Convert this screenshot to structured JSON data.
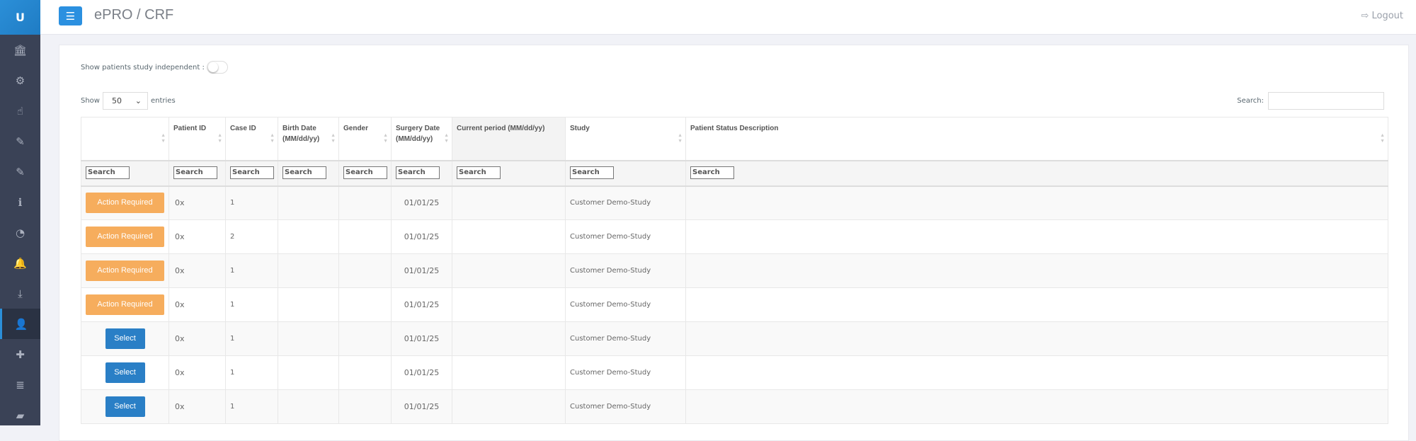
{
  "sidebar": {
    "logo": "U",
    "items": [
      {
        "icon": "bank-icon",
        "glyph": "🏛"
      },
      {
        "icon": "gear-icon",
        "glyph": "⚙"
      },
      {
        "icon": "hand-pointer-icon",
        "glyph": "☝"
      },
      {
        "icon": "pencil-icon",
        "glyph": "✎"
      },
      {
        "icon": "pencil-icon",
        "glyph": "✎"
      },
      {
        "icon": "info-icon",
        "glyph": "ℹ"
      },
      {
        "icon": "dashboard-icon",
        "glyph": "◔"
      },
      {
        "icon": "bell-icon",
        "glyph": "🔔"
      },
      {
        "icon": "download-icon",
        "glyph": "⤓"
      },
      {
        "icon": "user-md-icon",
        "glyph": "👤",
        "active": true
      },
      {
        "icon": "medkit-icon",
        "glyph": "✚"
      },
      {
        "icon": "database-icon",
        "glyph": "≣"
      },
      {
        "icon": "book-icon",
        "glyph": "▰"
      }
    ]
  },
  "header": {
    "title": "ePRO / CRF",
    "logout": "Logout",
    "accent": "#2b90e0"
  },
  "controls": {
    "toggle_label": "Show patients study independent :",
    "toggle_on": false,
    "show": "Show",
    "entries_value": "50",
    "entries": "entries",
    "search_label": "Search:",
    "search_value": ""
  },
  "table": {
    "columns": [
      "",
      "Patient ID",
      "Case ID",
      "Birth Date (MM/dd/yy)",
      "Gender",
      "Surgery Date (MM/dd/yy)",
      "Current period (MM/dd/yy)",
      "Study",
      "Patient Status Description"
    ],
    "filter_placeholder": "Search",
    "rows": [
      {
        "action": "Action Required",
        "patient_id": "0x",
        "case_id": "1",
        "birth": "",
        "gender": "",
        "surgery": "01/01/25",
        "period": "",
        "study": "Customer Demo-Study",
        "status": ""
      },
      {
        "action": "Action Required",
        "patient_id": "0x",
        "case_id": "2",
        "birth": "",
        "gender": "",
        "surgery": "01/01/25",
        "period": "",
        "study": "Customer Demo-Study",
        "status": ""
      },
      {
        "action": "Action Required",
        "patient_id": "0x",
        "case_id": "1",
        "birth": "",
        "gender": "",
        "surgery": "01/01/25",
        "period": "",
        "study": "Customer Demo-Study",
        "status": ""
      },
      {
        "action": "Action Required",
        "patient_id": "0x",
        "case_id": "1",
        "birth": "",
        "gender": "",
        "surgery": "01/01/25",
        "period": "",
        "study": "Customer Demo-Study",
        "status": ""
      },
      {
        "action": "Select",
        "patient_id": "0x",
        "case_id": "1",
        "birth": "",
        "gender": "",
        "surgery": "01/01/25",
        "period": "",
        "study": "Customer Demo-Study",
        "status": ""
      },
      {
        "action": "Select",
        "patient_id": "0x",
        "case_id": "1",
        "birth": "",
        "gender": "",
        "surgery": "01/01/25",
        "period": "",
        "study": "Customer Demo-Study",
        "status": ""
      },
      {
        "action": "Select",
        "patient_id": "0x",
        "case_id": "1",
        "birth": "",
        "gender": "",
        "surgery": "01/01/25",
        "period": "",
        "study": "Customer Demo-Study",
        "status": ""
      }
    ]
  }
}
